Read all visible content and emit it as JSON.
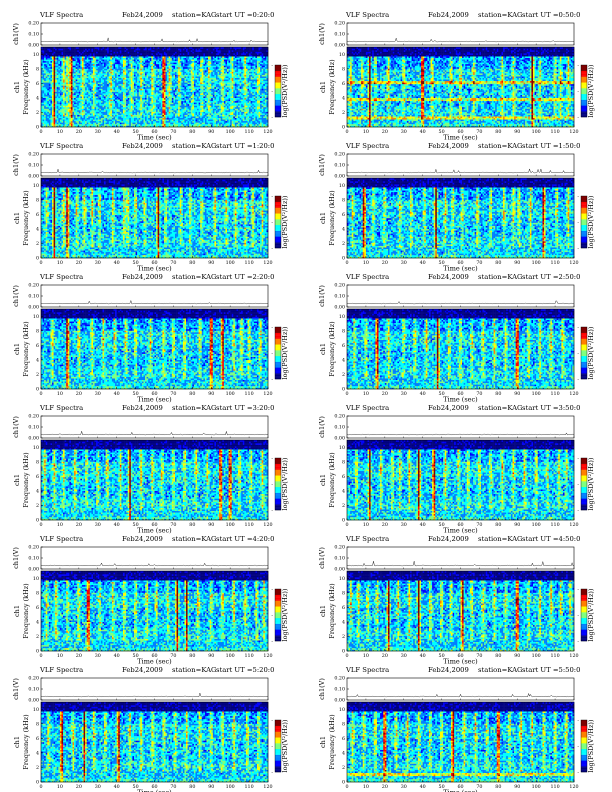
{
  "figure": {
    "width": 612,
    "height": 792
  },
  "common": {
    "title": "VLF Spectra",
    "date": "Feb24,2009",
    "station": "station=KAG",
    "start_prefix": "start UT =",
    "top_ylabel": "ch1(V)",
    "spec_ylabel": "Frequency (kHz)",
    "ch_label": "ch1",
    "xlabel": "Time (sec)",
    "cbar_label": "log(PSD(V²/Hz))",
    "colors": [
      "#00007f",
      "#0000ff",
      "#007fff",
      "#00ffff",
      "#7fff7f",
      "#ffff00",
      "#ff7f00",
      "#ff0000",
      "#7f0000"
    ]
  },
  "chart_data": [
    {
      "type": "heatmap",
      "start_time": "0:20:0",
      "x_ticks": [
        "0",
        "10",
        "20",
        "30",
        "40",
        "50",
        "60",
        "70",
        "80",
        "90",
        "100",
        "110",
        "120"
      ],
      "xlim": [
        0,
        120
      ],
      "top_ylim": [
        0,
        0.2
      ],
      "top_yticks": [
        "0.20",
        "0.10",
        "0.00"
      ],
      "y_ticks": [
        "0",
        "2",
        "4",
        "6",
        "8",
        "10"
      ],
      "ylim": [
        0,
        11
      ],
      "cbar_ticks": [
        "-",
        "-",
        "-"
      ],
      "events": [
        7,
        12,
        14,
        16,
        22,
        28,
        37,
        44,
        48,
        53,
        59,
        65,
        68,
        73,
        80,
        85,
        89,
        96,
        101,
        108,
        115
      ],
      "emphasis": [
        7,
        16,
        65
      ]
    },
    {
      "type": "heatmap",
      "start_time": "0:50:0",
      "x_ticks": [
        "0",
        "10",
        "20",
        "30",
        "40",
        "50",
        "60",
        "70",
        "80",
        "90",
        "100",
        "110",
        "120"
      ],
      "xlim": [
        0,
        120
      ],
      "top_ylim": [
        0,
        0.2
      ],
      "top_yticks": [
        "0.20",
        "0.10",
        "0.00"
      ],
      "y_ticks": [
        "0",
        "2",
        "4",
        "6",
        "8",
        "10"
      ],
      "ylim": [
        0,
        11
      ],
      "cbar_ticks": [
        "-",
        "-",
        "-"
      ],
      "events": [
        2,
        8,
        12,
        15,
        22,
        30,
        40,
        45,
        55,
        60,
        67,
        82,
        88,
        98,
        102,
        110,
        113,
        117
      ],
      "emphasis": [
        12,
        40,
        98
      ],
      "bands": [
        6.2,
        3.8,
        1.2
      ]
    },
    {
      "type": "heatmap",
      "start_time": "1:20:0",
      "x_ticks": [
        "0",
        "10",
        "20",
        "30",
        "40",
        "50",
        "60",
        "70",
        "80",
        "90",
        "100",
        "110",
        "120"
      ],
      "xlim": [
        0,
        120
      ],
      "top_ylim": [
        0,
        0.2
      ],
      "top_yticks": [
        "0.20",
        "0.10",
        "0.00"
      ],
      "y_ticks": [
        "0",
        "2",
        "4",
        "6",
        "8",
        "10"
      ],
      "ylim": [
        0,
        11
      ],
      "cbar_ticks": [
        "-",
        "-",
        "-"
      ],
      "events": [
        3,
        7,
        12,
        14,
        19,
        23,
        27,
        31,
        38,
        44,
        46,
        50,
        55,
        62,
        66,
        74,
        79,
        85,
        92,
        98,
        103,
        108,
        112,
        117
      ],
      "emphasis": [
        7,
        14,
        62
      ]
    },
    {
      "type": "heatmap",
      "start_time": "1:50:0",
      "x_ticks": [
        "0",
        "10",
        "20",
        "30",
        "40",
        "50",
        "60",
        "70",
        "80",
        "90",
        "100",
        "110",
        "120"
      ],
      "xlim": [
        0,
        120
      ],
      "top_ylim": [
        0,
        0.2
      ],
      "top_yticks": [
        "0.20",
        "0.10",
        "0.00"
      ],
      "y_ticks": [
        "0",
        "2",
        "4",
        "6",
        "8",
        "10"
      ],
      "ylim": [
        0,
        11
      ],
      "cbar_ticks": [
        "-",
        "-",
        "-"
      ],
      "events": [
        3,
        9,
        14,
        20,
        28,
        34,
        41,
        47,
        52,
        56,
        61,
        69,
        76,
        83,
        88,
        91,
        97,
        104,
        111,
        117
      ],
      "emphasis": [
        9,
        47,
        104
      ]
    },
    {
      "type": "heatmap",
      "start_time": "2:20:0",
      "x_ticks": [
        "0",
        "10",
        "20",
        "30",
        "40",
        "50",
        "60",
        "70",
        "80",
        "90",
        "100",
        "110",
        "120"
      ],
      "xlim": [
        0,
        120
      ],
      "top_ylim": [
        0,
        0.2
      ],
      "top_yticks": [
        "0.20",
        "0.10",
        "0.00"
      ],
      "y_ticks": [
        "0",
        "2",
        "4",
        "6",
        "8",
        "10"
      ],
      "ylim": [
        0,
        11
      ],
      "cbar_ticks": [
        "-",
        "-",
        "-"
      ],
      "events": [
        6,
        14,
        20,
        27,
        33,
        39,
        45,
        50,
        58,
        65,
        70,
        76,
        84,
        90,
        96,
        102,
        106,
        110,
        116
      ],
      "emphasis": [
        14,
        90,
        96
      ]
    },
    {
      "type": "heatmap",
      "start_time": "2:50:0",
      "x_ticks": [
        "0",
        "10",
        "20",
        "30",
        "40",
        "50",
        "60",
        "70",
        "80",
        "90",
        "100",
        "110",
        "120"
      ],
      "xlim": [
        0,
        120
      ],
      "top_ylim": [
        0,
        0.2
      ],
      "top_yticks": [
        "0.20",
        "0.10",
        "0.00"
      ],
      "y_ticks": [
        "0",
        "2",
        "4",
        "6",
        "8",
        "10"
      ],
      "ylim": [
        0,
        11
      ],
      "cbar_ticks": [
        "-",
        "-",
        "-"
      ],
      "events": [
        4,
        10,
        16,
        22,
        30,
        36,
        42,
        48,
        54,
        60,
        66,
        72,
        78,
        84,
        90,
        96,
        102,
        108,
        114
      ],
      "emphasis": [
        16,
        48,
        90
      ]
    },
    {
      "type": "heatmap",
      "start_time": "3:20:0",
      "x_ticks": [
        "0",
        "10",
        "20",
        "30",
        "40",
        "50",
        "60",
        "70",
        "80",
        "90",
        "100",
        "110",
        "120"
      ],
      "xlim": [
        0,
        120
      ],
      "top_ylim": [
        0,
        0.2
      ],
      "top_yticks": [
        "0.20",
        "0.10",
        "0.00"
      ],
      "y_ticks": [
        "0",
        "2",
        "4",
        "6",
        "8",
        "10"
      ],
      "ylim": [
        0,
        11
      ],
      "cbar_ticks": [
        "-",
        "-",
        "-"
      ],
      "events": [
        2,
        7,
        12,
        18,
        24,
        30,
        35,
        42,
        47,
        53,
        59,
        64,
        70,
        76,
        82,
        88,
        95,
        100,
        105,
        111,
        117
      ],
      "emphasis": [
        47,
        95,
        100
      ]
    },
    {
      "type": "heatmap",
      "start_time": "3:50:0",
      "x_ticks": [
        "0",
        "10",
        "20",
        "30",
        "40",
        "50",
        "60",
        "70",
        "80",
        "90",
        "100",
        "110",
        "120"
      ],
      "xlim": [
        0,
        120
      ],
      "top_ylim": [
        0,
        0.2
      ],
      "top_yticks": [
        "0.20",
        "0.10",
        "0.00"
      ],
      "y_ticks": [
        "0",
        "2",
        "4",
        "6",
        "8",
        "10"
      ],
      "ylim": [
        0,
        11
      ],
      "cbar_ticks": [
        "-",
        "-",
        "-"
      ],
      "events": [
        5,
        12,
        18,
        24,
        28,
        33,
        38,
        46,
        52,
        59,
        64,
        70,
        76,
        82,
        88,
        94,
        100,
        106,
        112,
        116
      ],
      "emphasis": [
        12,
        38,
        46
      ]
    },
    {
      "type": "heatmap",
      "start_time": "4:20:0",
      "x_ticks": [
        "0",
        "10",
        "20",
        "30",
        "40",
        "50",
        "60",
        "70",
        "80",
        "90",
        "100",
        "110",
        "120"
      ],
      "xlim": [
        0,
        120
      ],
      "top_ylim": [
        0,
        0.2
      ],
      "top_yticks": [
        "0.20",
        "0.10",
        "0.00"
      ],
      "y_ticks": [
        "0",
        "2",
        "4",
        "6",
        "8",
        "10"
      ],
      "ylim": [
        0,
        11
      ],
      "cbar_ticks": [
        "-",
        "-",
        "-"
      ],
      "events": [
        3,
        8,
        14,
        20,
        25,
        31,
        38,
        44,
        50,
        56,
        61,
        67,
        72,
        77,
        83,
        90,
        96,
        102,
        108,
        114,
        118
      ],
      "emphasis": [
        25,
        72,
        77
      ]
    },
    {
      "type": "heatmap",
      "start_time": "4:50:0",
      "x_ticks": [
        "0",
        "10",
        "20",
        "30",
        "40",
        "50",
        "60",
        "70",
        "80",
        "90",
        "100",
        "110",
        "120"
      ],
      "xlim": [
        0,
        120
      ],
      "top_ylim": [
        0,
        0.2
      ],
      "top_yticks": [
        "0.20",
        "0.10",
        "0.00"
      ],
      "y_ticks": [
        "0",
        "2",
        "4",
        "6",
        "8",
        "10"
      ],
      "ylim": [
        0,
        11
      ],
      "cbar_ticks": [
        "-",
        "-",
        "-"
      ],
      "events": [
        2,
        6,
        11,
        16,
        22,
        27,
        33,
        38,
        44,
        50,
        55,
        61,
        66,
        72,
        78,
        84,
        90,
        96,
        102,
        108,
        113,
        118
      ],
      "emphasis": [
        22,
        38,
        61,
        90
      ]
    },
    {
      "type": "heatmap",
      "start_time": "5:20:0",
      "x_ticks": [
        "0",
        "10",
        "20",
        "30",
        "40",
        "50",
        "60",
        "70",
        "80",
        "90",
        "100",
        "110",
        "120"
      ],
      "xlim": [
        0,
        120
      ],
      "top_ylim": [
        0,
        0.2
      ],
      "top_yticks": [
        "0.20",
        "0.10",
        "0.00"
      ],
      "y_ticks": [
        "0",
        "2",
        "4",
        "6",
        "8",
        "10"
      ],
      "ylim": [
        0,
        11
      ],
      "cbar_ticks": [
        "-",
        "-",
        "-"
      ],
      "events": [
        4,
        11,
        17,
        23,
        28,
        34,
        41,
        47,
        53,
        59,
        65,
        71,
        77,
        84,
        90,
        96,
        102,
        109,
        115
      ],
      "emphasis": [
        11,
        23,
        41
      ]
    },
    {
      "type": "heatmap",
      "start_time": "5:50:0",
      "x_ticks": [
        "0",
        "10",
        "20",
        "30",
        "40",
        "50",
        "60",
        "70",
        "80",
        "90",
        "100",
        "110",
        "120"
      ],
      "xlim": [
        0,
        120
      ],
      "top_ylim": [
        0,
        0.2
      ],
      "top_yticks": [
        "0.20",
        "0.10",
        "0.00"
      ],
      "y_ticks": [
        "0",
        "2",
        "4",
        "6",
        "8",
        "10"
      ],
      "ylim": [
        0,
        11
      ],
      "cbar_ticks": [
        "-",
        "-",
        "-"
      ],
      "events": [
        3,
        9,
        15,
        20,
        26,
        32,
        38,
        44,
        50,
        56,
        62,
        68,
        74,
        80,
        86,
        92,
        98,
        104,
        110,
        116
      ],
      "emphasis": [
        20,
        56,
        80
      ],
      "bands": [
        1.1
      ]
    }
  ]
}
